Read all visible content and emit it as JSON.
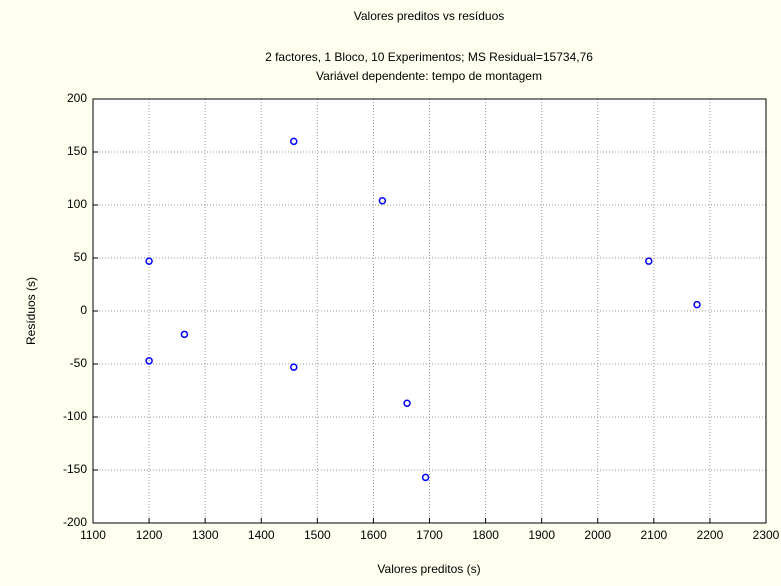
{
  "chart_data": {
    "type": "scatter",
    "title": "Valores preditos vs resíduos",
    "subtitle": "2 factores, 1 Bloco, 10 Experimentos; MS Residual=15734,76",
    "subtitle2": "Variável dependente: tempo de montagem",
    "x_label": "Valores preditos (s)",
    "y_label": "Resíduos (s)",
    "x": [
      1200,
      1200,
      1263,
      1458,
      1458,
      1616,
      1660,
      1693,
      2091,
      2177
    ],
    "y": [
      47,
      -47,
      -22,
      160,
      -53,
      104,
      -87,
      -157,
      47,
      6
    ],
    "color": "#0000ff",
    "xlim": [
      1100,
      2300
    ],
    "xticks": [
      1100,
      1200,
      1300,
      1400,
      1500,
      1600,
      1700,
      1800,
      1900,
      2000,
      2100,
      2200,
      2300
    ],
    "ylim": [
      -200,
      200
    ],
    "yticks": [
      -200,
      -150,
      -100,
      -50,
      0,
      50,
      100,
      150,
      200
    ],
    "grid": true
  }
}
